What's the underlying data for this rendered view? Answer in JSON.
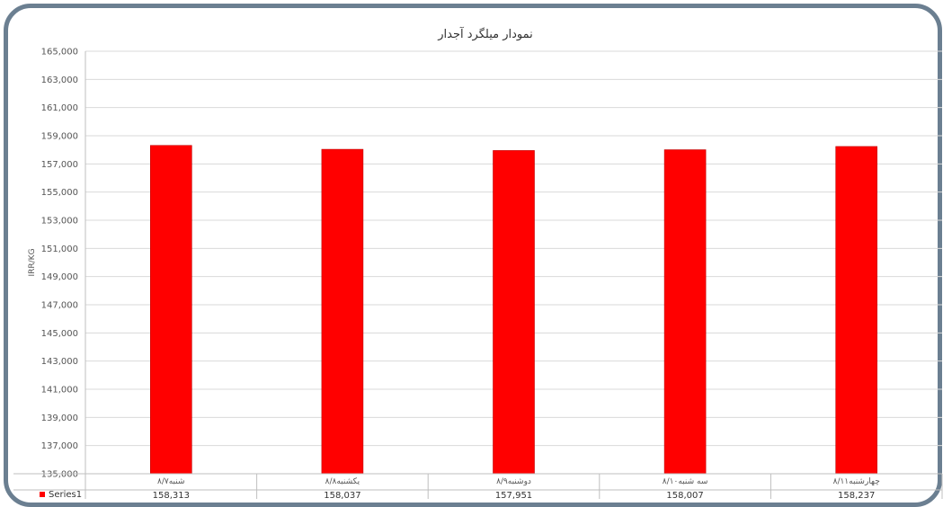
{
  "chart_data": {
    "type": "bar",
    "title": "نمودار میلگرد آجدار",
    "ylabel": "IRR/KG",
    "categories": [
      "شنبه۸/۷",
      "یکشنبه۸/۸",
      "دوشنبه۸/۹",
      "سه شنبه۸/۱۰",
      "چهارشنبه۸/۱۱"
    ],
    "series": [
      {
        "name": "Series1",
        "values": [
          158313,
          158037,
          157951,
          158007,
          158237
        ]
      }
    ],
    "value_labels": [
      "158,313",
      "158,037",
      "157,951",
      "158,007",
      "158,237"
    ],
    "ylim": [
      135000,
      165000
    ],
    "yticks": [
      "165,000",
      "163,000",
      "161,000",
      "159,000",
      "157,000",
      "155,000",
      "153,000",
      "151,000",
      "149,000",
      "147,000",
      "145,000",
      "143,000",
      "141,000",
      "139,000",
      "137,000",
      "135,000"
    ],
    "grid": true,
    "legend": "data-table",
    "bar_color": "#ff0000"
  }
}
